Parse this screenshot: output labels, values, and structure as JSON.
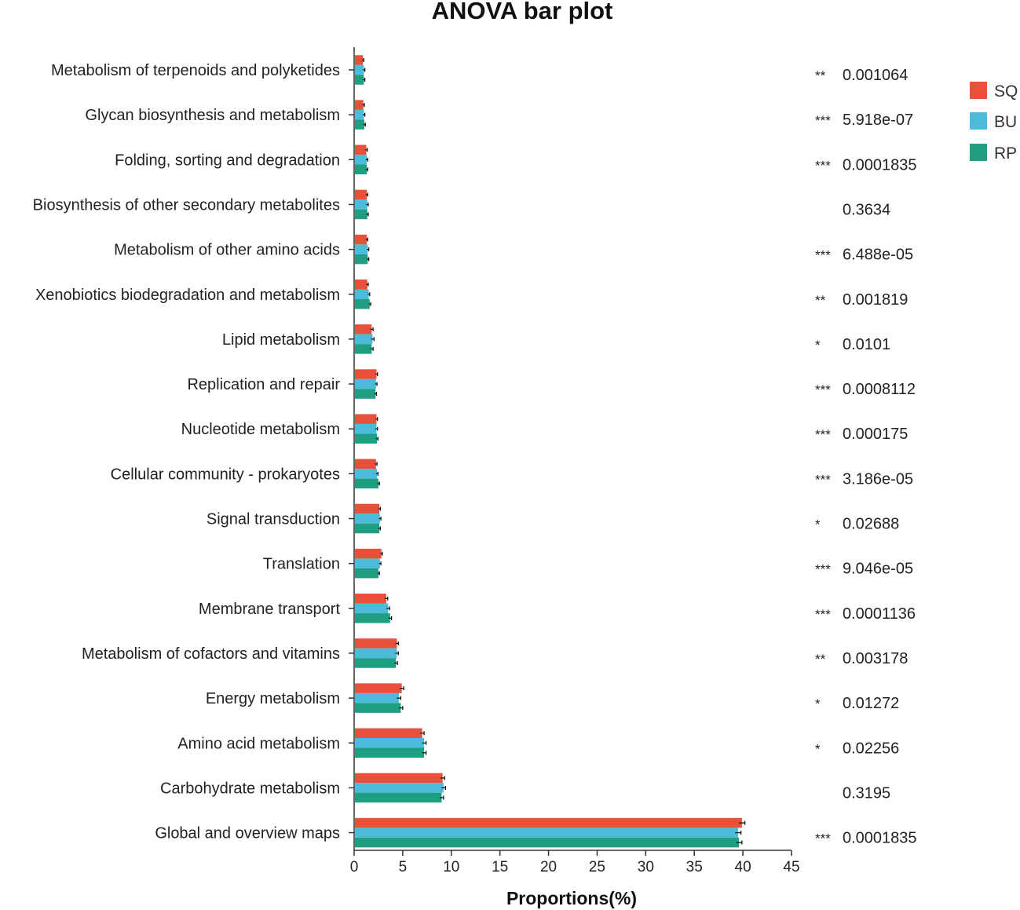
{
  "chart_data": {
    "type": "bar",
    "orientation": "horizontal",
    "title": "ANOVA bar plot",
    "xlabel": "Proportions(%)",
    "ylabel": "",
    "xlim": [
      0,
      45
    ],
    "xticks": [
      0,
      5,
      10,
      15,
      20,
      25,
      30,
      35,
      40,
      45
    ],
    "xtick_labels": [
      "0",
      "5",
      "10",
      "15",
      "20",
      "25",
      "30",
      "35",
      "40",
      "45"
    ],
    "categories": [
      "Metabolism of terpenoids and polyketides",
      "Glycan biosynthesis and metabolism",
      "Folding, sorting and degradation",
      "Biosynthesis of other secondary metabolites",
      "Metabolism of other amino acids",
      "Xenobiotics biodegradation and metabolism",
      "Lipid metabolism",
      "Replication and repair",
      "Nucleotide metabolism",
      "Cellular community - prokaryotes",
      "Signal transduction",
      "Translation",
      "Membrane transport",
      "Metabolism of cofactors and vitamins",
      "Energy metabolism",
      "Amino acid metabolism",
      "Carbohydrate metabolism",
      "Global and overview maps"
    ],
    "series": [
      {
        "name": "SQ",
        "color": "#E8503A",
        "values": [
          0.9,
          0.95,
          1.25,
          1.3,
          1.3,
          1.35,
          1.8,
          2.3,
          2.3,
          2.25,
          2.6,
          2.8,
          3.3,
          4.4,
          4.9,
          7.0,
          9.1,
          39.9
        ],
        "errors": [
          0.1,
          0.1,
          0.1,
          0.1,
          0.1,
          0.1,
          0.15,
          0.1,
          0.1,
          0.1,
          0.1,
          0.1,
          0.15,
          0.15,
          0.2,
          0.2,
          0.2,
          0.3
        ]
      },
      {
        "name": "BU",
        "color": "#4BBBD9",
        "values": [
          1.0,
          1.0,
          1.3,
          1.35,
          1.4,
          1.5,
          1.9,
          2.25,
          2.3,
          2.35,
          2.65,
          2.65,
          3.5,
          4.4,
          4.6,
          7.2,
          9.2,
          39.5
        ],
        "errors": [
          0.1,
          0.1,
          0.1,
          0.1,
          0.1,
          0.1,
          0.15,
          0.1,
          0.1,
          0.1,
          0.1,
          0.1,
          0.15,
          0.15,
          0.2,
          0.2,
          0.2,
          0.3
        ]
      },
      {
        "name": "RP",
        "color": "#1F9E82",
        "values": [
          1.0,
          1.05,
          1.3,
          1.35,
          1.4,
          1.6,
          1.8,
          2.2,
          2.35,
          2.5,
          2.6,
          2.5,
          3.7,
          4.3,
          4.8,
          7.2,
          9.0,
          39.6
        ],
        "errors": [
          0.1,
          0.1,
          0.1,
          0.1,
          0.1,
          0.1,
          0.15,
          0.1,
          0.1,
          0.1,
          0.1,
          0.1,
          0.15,
          0.15,
          0.2,
          0.2,
          0.2,
          0.3
        ]
      }
    ],
    "significance": [
      "**",
      "***",
      "***",
      "",
      "***",
      "**",
      "*",
      "***",
      "***",
      "***",
      "*",
      "***",
      "***",
      "**",
      "*",
      "*",
      "",
      "***"
    ],
    "p_values": [
      "0.001064",
      "5.918e-07",
      "0.0001835",
      "0.3634",
      "6.488e-05",
      "0.001819",
      "0.0101",
      "0.0008112",
      "0.000175",
      "3.186e-05",
      "0.02688",
      "9.046e-05",
      "0.0001136",
      "0.003178",
      "0.01272",
      "0.02256",
      "0.3195",
      "0.0001835"
    ],
    "legend": {
      "position": "top-right",
      "entries": [
        "SQ",
        "BU",
        "RP"
      ]
    }
  }
}
